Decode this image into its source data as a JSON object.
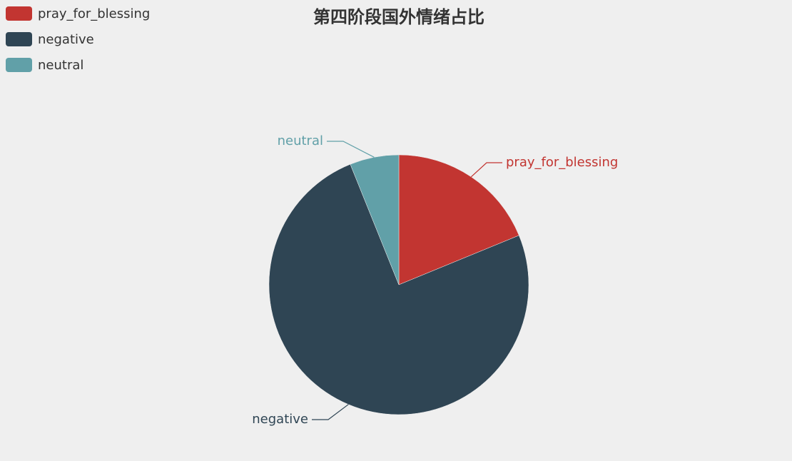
{
  "chart_data": {
    "type": "pie",
    "title": "第四阶段国外情绪占比",
    "legend_placement": "top-left",
    "categories": [
      "pray_for_blessing",
      "negative",
      "neutral"
    ],
    "values": [
      18.8,
      75.1,
      6.1
    ],
    "colors": [
      "#c23531",
      "#2f4554",
      "#61a0a8"
    ]
  }
}
